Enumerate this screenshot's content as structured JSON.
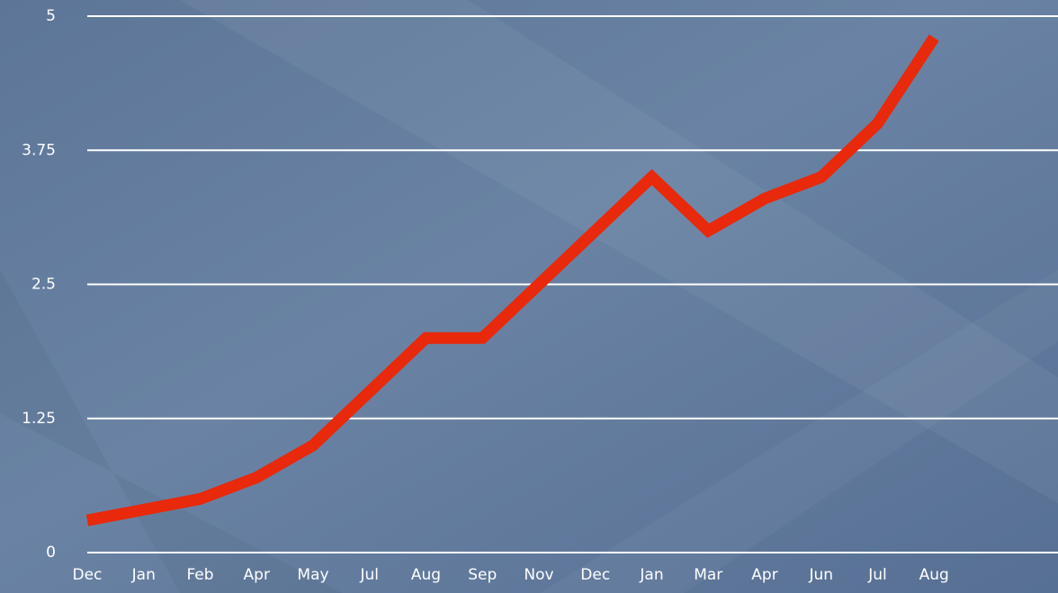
{
  "chart_data": {
    "type": "line",
    "categories": [
      "Dec",
      "Jan",
      "Feb",
      "Apr",
      "May",
      "Jul",
      "Aug",
      "Sep",
      "Nov",
      "Dec",
      "Jan",
      "Mar",
      "Apr",
      "Jun",
      "Jul",
      "Aug"
    ],
    "series": [
      {
        "color": "#e8290b",
        "values": [
          0.3,
          0.4,
          0.5,
          0.7,
          1.0,
          1.5,
          2.0,
          2.0,
          2.5,
          3.0,
          3.5,
          3.0,
          3.3,
          3.5,
          4.0,
          4.8
        ]
      }
    ],
    "ylim": [
      0,
      5
    ],
    "yticks": [
      0,
      1.25,
      2.5,
      3.75,
      5
    ],
    "grid": true
  }
}
